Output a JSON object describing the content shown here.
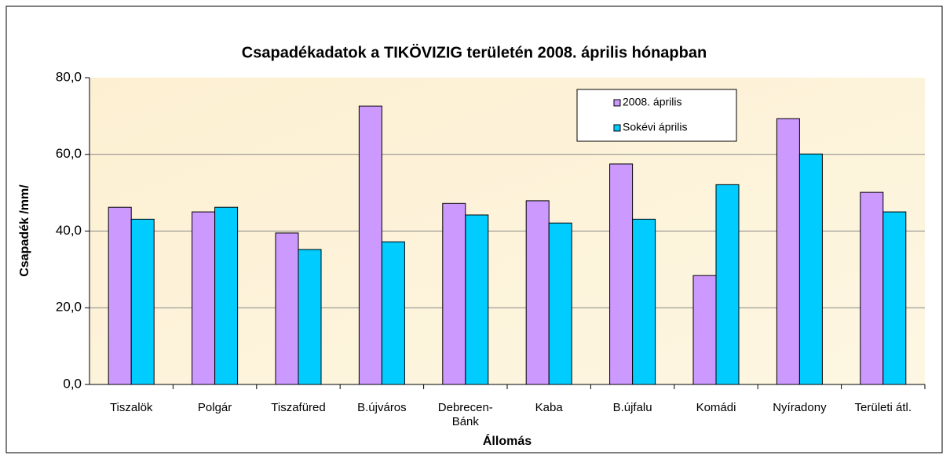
{
  "chart_data": {
    "type": "bar",
    "title": "Csapadékadatok a TIKÖVIZIG területén 2008. április hónapban",
    "x_label": "Állomás",
    "y_label": "Csapadék /mm/",
    "categories": [
      "Tiszalök",
      "Polgár",
      "Tiszafüred",
      "B.újváros",
      "Debrecen-Bánk",
      "Kaba",
      "B.újfalu",
      "Komádi",
      "Nyíradony",
      "Területi átl."
    ],
    "series": [
      {
        "name": "2008. április",
        "color": "#cc99ff",
        "values": [
          46.2,
          45.0,
          39.5,
          72.6,
          47.2,
          47.9,
          57.5,
          28.4,
          69.3,
          50.1
        ]
      },
      {
        "name": "Sokévi április",
        "color": "#00ccff",
        "values": [
          43.1,
          46.2,
          35.2,
          37.2,
          44.2,
          42.1,
          43.1,
          52.1,
          60.1,
          45.0
        ]
      }
    ],
    "ylim": [
      0,
      80
    ],
    "yticks": [
      {
        "value": 0,
        "label": "0,0"
      },
      {
        "value": 20,
        "label": "20,0"
      },
      {
        "value": 40,
        "label": "40,0"
      },
      {
        "value": 60,
        "label": "60,0"
      },
      {
        "value": 80,
        "label": "80,0"
      }
    ],
    "grid": true,
    "legend_position": "top-right"
  }
}
